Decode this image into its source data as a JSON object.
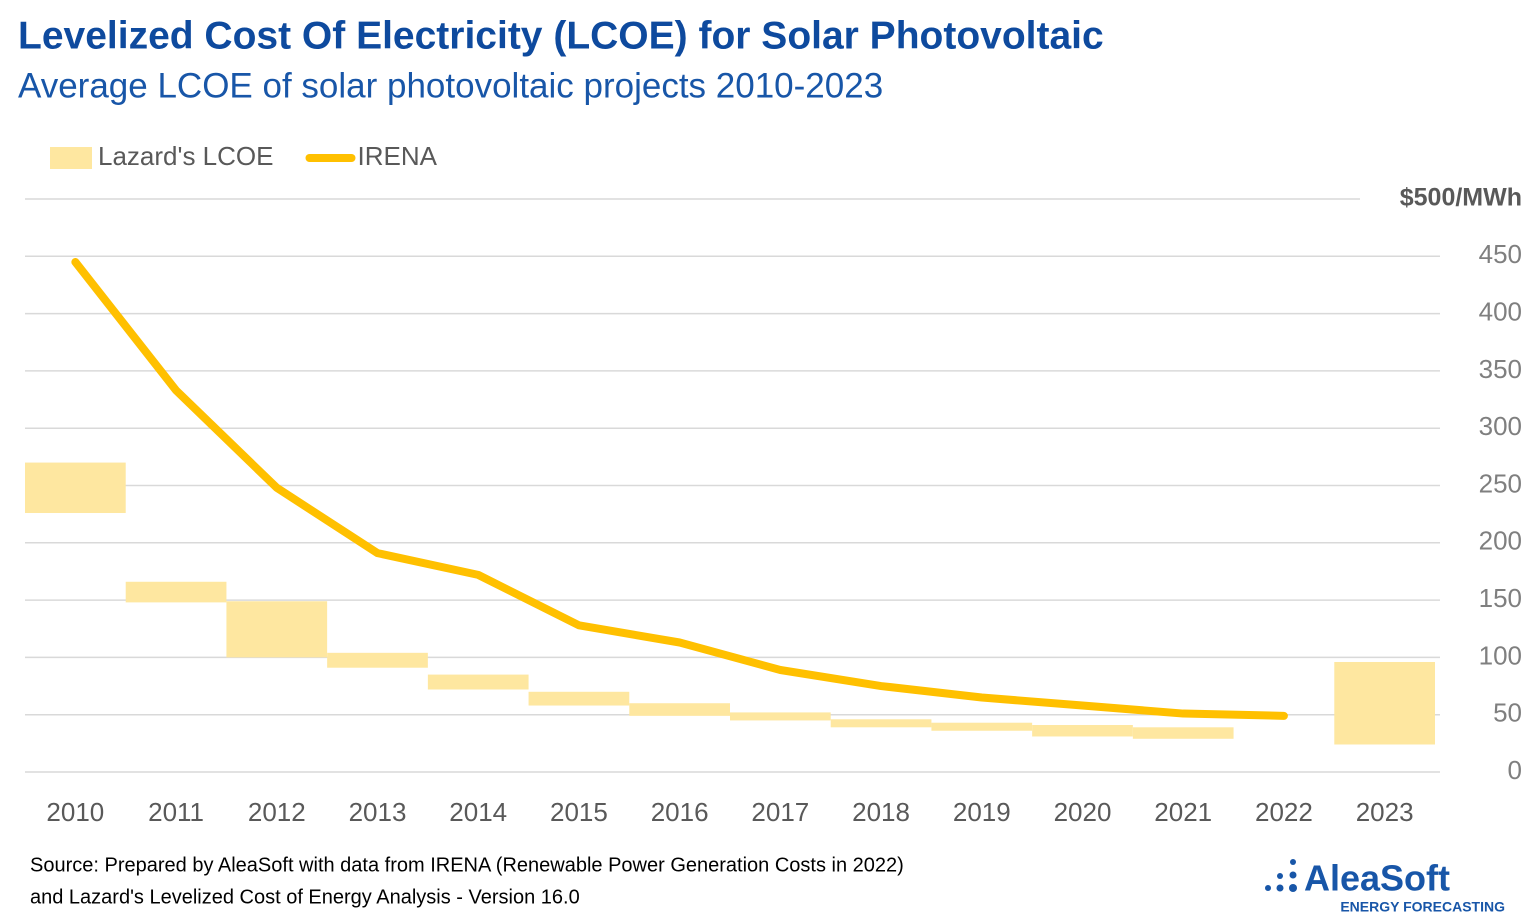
{
  "chart_data": {
    "type": "combo",
    "title": "Levelized Cost Of Electricity (LCOE) for Solar Photovoltaic",
    "subtitle": "Average LCOE of solar photovoltaic projects 2010-2023",
    "categories": [
      "2010",
      "2011",
      "2012",
      "2013",
      "2014",
      "2015",
      "2016",
      "2017",
      "2018",
      "2019",
      "2020",
      "2021",
      "2022",
      "2023"
    ],
    "series": [
      {
        "name": "Lazard's LCOE",
        "type": "range-bar",
        "color": "#fee7a0",
        "low": [
          226,
          148,
          100,
          91,
          72,
          58,
          49,
          45,
          39,
          36,
          31,
          29,
          null,
          24
        ],
        "high": [
          270,
          166,
          149,
          104,
          85,
          70,
          60,
          52,
          46,
          43,
          41,
          39,
          null,
          96
        ]
      },
      {
        "name": "IRENA",
        "type": "line",
        "color": "#ffc000",
        "values": [
          445,
          333,
          248,
          191,
          172,
          128,
          113,
          89,
          75,
          65,
          58,
          51,
          49,
          null
        ]
      }
    ],
    "ylim": [
      0,
      500
    ],
    "yticks": [
      0,
      50,
      100,
      150,
      200,
      250,
      300,
      350,
      400,
      450,
      {
        "value": 500,
        "label": "$500/MWh"
      }
    ],
    "grid": true,
    "legend": "top-left"
  },
  "footer": {
    "source": [
      "Source: Prepared by AleaSoft with data from IRENA (Renewable Power Generation Costs in 2022)",
      "and Lazard's Levelized Cost of Energy Analysis - Version 16.0"
    ],
    "logo": "AleaSoft",
    "logo_tagline": "ENERGY FORECASTING"
  }
}
